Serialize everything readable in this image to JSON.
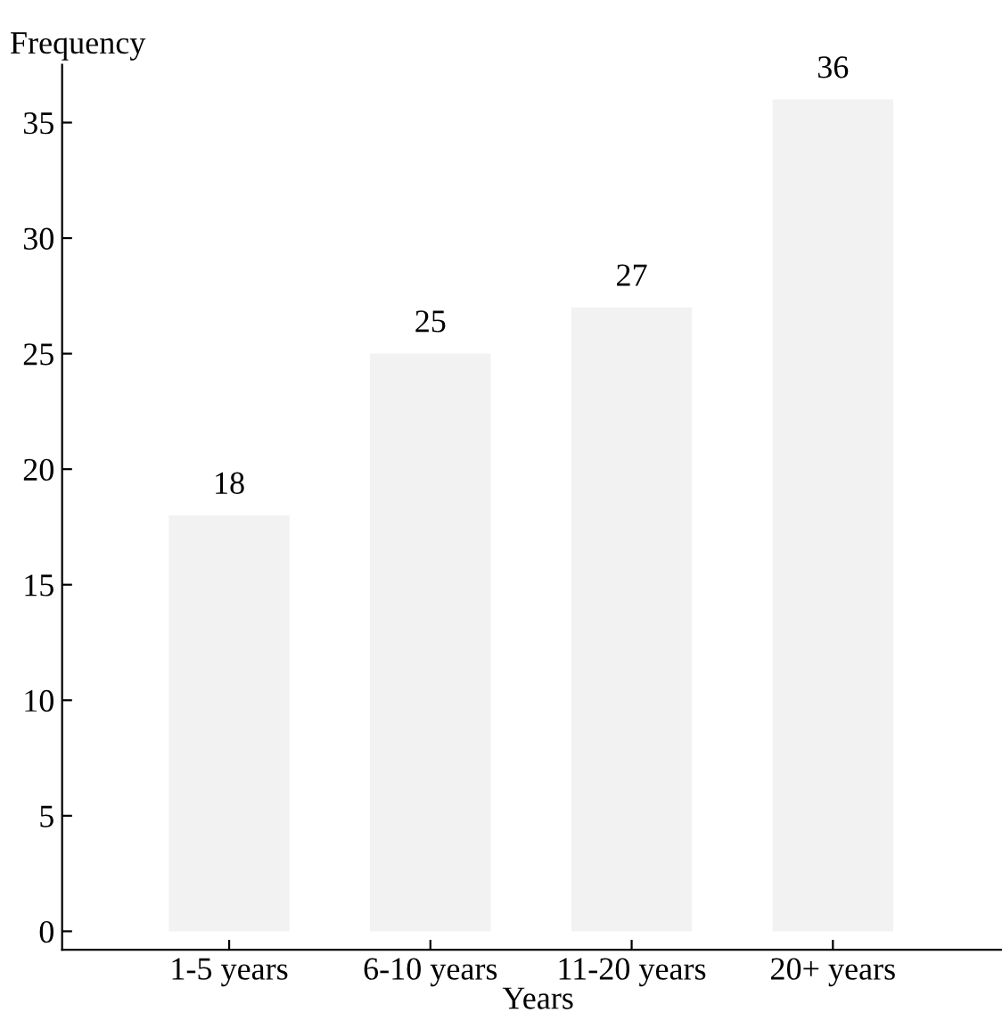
{
  "chart_data": {
    "type": "bar",
    "xlabel": "Years",
    "ylabel": "Frequency",
    "categories": [
      "1-5 years",
      "6-10 years",
      "11-20 years",
      "20+ years"
    ],
    "values": [
      18,
      25,
      27,
      36
    ],
    "color": "#f2f2f2",
    "data_labels": true,
    "ylim": [
      -0.8,
      37.5
    ],
    "yticks": [
      0,
      5,
      10,
      15,
      20,
      25,
      30,
      35
    ],
    "grid": false,
    "legend": false
  }
}
